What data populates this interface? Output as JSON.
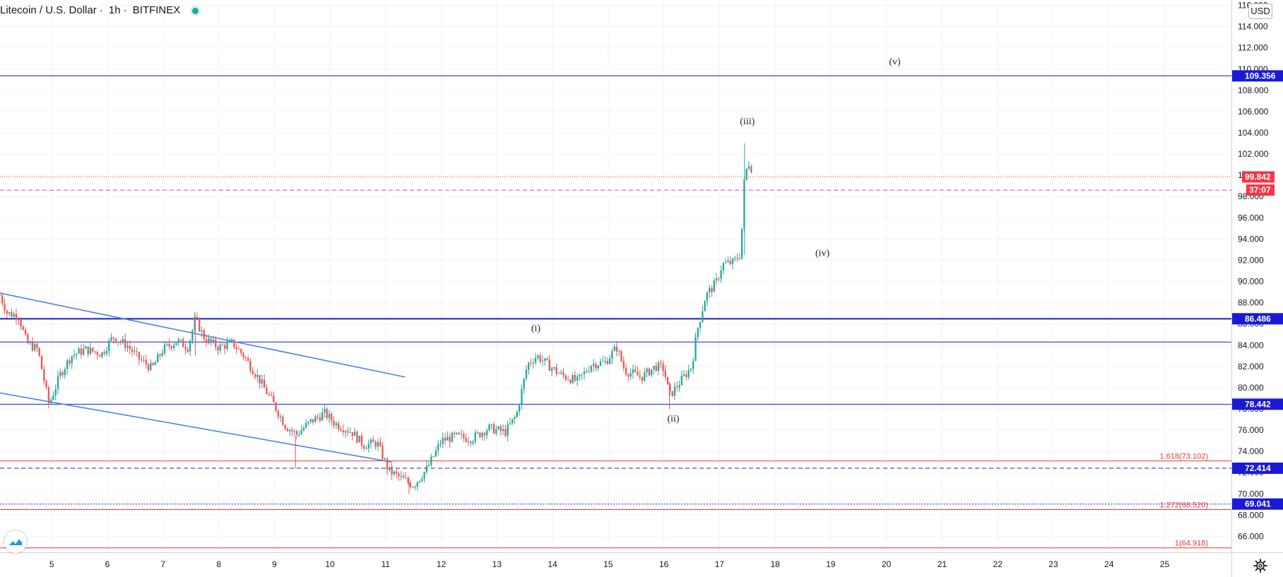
{
  "header": {
    "symbol": "Litecoin / U.S. Dollar",
    "interval": "1h",
    "exchange": "BITFINEX"
  },
  "currency_button": "USD",
  "colors": {
    "up": "#26a69a",
    "down": "#ef5350",
    "level_blue": "#1a1ad6",
    "trend_blue": "#4a86e8",
    "fib_red": "#e53935",
    "price_red": "#f23645",
    "magenta": "#cc44dd"
  },
  "chart_data": {
    "type": "candlestick",
    "y_range": [
      64.5,
      116.5
    ],
    "x_range": [
      4.07,
      26.2
    ],
    "y_ticks": [
      66,
      68,
      70,
      72,
      74,
      76,
      78,
      80,
      82,
      84,
      86,
      88,
      90,
      92,
      94,
      96,
      98,
      100,
      102,
      104,
      106,
      108,
      110,
      112,
      114,
      116
    ],
    "y_tick_labels": [
      "66.000",
      "68.000",
      "70.000",
      "72.000",
      "74.000",
      "76.000",
      "78.000",
      "80.000",
      "82.000",
      "84.000",
      "86.000",
      "88.000",
      "90.000",
      "92.000",
      "94.000",
      "96.000",
      "98.000",
      "100.000",
      "102.000",
      "104.000",
      "106.000",
      "108.000",
      "110.000",
      "112.000",
      "114.000",
      "116.000"
    ],
    "x_ticks": [
      5,
      6,
      7,
      8,
      9,
      10,
      11,
      12,
      13,
      14,
      15,
      16,
      17,
      18,
      19,
      20,
      21,
      22,
      23,
      24,
      25
    ],
    "x_tick_labels": [
      "5",
      "6",
      "7",
      "8",
      "9",
      "10",
      "11",
      "12",
      "13",
      "14",
      "15",
      "16",
      "17",
      "18",
      "19",
      "20",
      "21",
      "22",
      "23",
      "24",
      "25"
    ],
    "price_path": [
      [
        4.07,
        88.7
      ],
      [
        4.2,
        87.0
      ],
      [
        4.4,
        86.8
      ],
      [
        4.55,
        84.2
      ],
      [
        4.75,
        83.6
      ],
      [
        4.95,
        78.4
      ],
      [
        5.15,
        81.2
      ],
      [
        5.35,
        83.0
      ],
      [
        5.6,
        83.6
      ],
      [
        5.9,
        83.2
      ],
      [
        6.1,
        84.8
      ],
      [
        6.35,
        84.0
      ],
      [
        6.55,
        82.8
      ],
      [
        6.8,
        81.8
      ],
      [
        7.0,
        83.6
      ],
      [
        7.25,
        84.4
      ],
      [
        7.45,
        83.8
      ],
      [
        7.58,
        86.5
      ],
      [
        7.75,
        84.6
      ],
      [
        8.0,
        83.8
      ],
      [
        8.25,
        84.2
      ],
      [
        8.45,
        83.0
      ],
      [
        8.7,
        81.0
      ],
      [
        8.95,
        78.8
      ],
      [
        9.2,
        76.4
      ],
      [
        9.4,
        75.6
      ],
      [
        9.65,
        76.8
      ],
      [
        9.9,
        77.6
      ],
      [
        10.1,
        76.6
      ],
      [
        10.4,
        75.8
      ],
      [
        10.6,
        74.6
      ],
      [
        10.85,
        74.8
      ],
      [
        11.05,
        72.2
      ],
      [
        11.3,
        71.4
      ],
      [
        11.5,
        70.8
      ],
      [
        11.75,
        72.4
      ],
      [
        12.0,
        75.0
      ],
      [
        12.25,
        75.4
      ],
      [
        12.55,
        75.2
      ],
      [
        12.85,
        76.2
      ],
      [
        13.15,
        75.8
      ],
      [
        13.35,
        77.4
      ],
      [
        13.55,
        82.2
      ],
      [
        13.72,
        83.0
      ],
      [
        13.9,
        82.2
      ],
      [
        14.15,
        81.2
      ],
      [
        14.45,
        80.6
      ],
      [
        14.7,
        82.2
      ],
      [
        14.95,
        82.4
      ],
      [
        15.15,
        83.8
      ],
      [
        15.3,
        81.6
      ],
      [
        15.6,
        81.0
      ],
      [
        15.85,
        82.0
      ],
      [
        16.0,
        81.8
      ],
      [
        16.1,
        79.2
      ],
      [
        16.3,
        80.6
      ],
      [
        16.5,
        82.0
      ],
      [
        16.6,
        85.4
      ],
      [
        16.75,
        88.6
      ],
      [
        16.95,
        90.0
      ],
      [
        17.05,
        91.6
      ],
      [
        17.25,
        91.8
      ],
      [
        17.38,
        92.6
      ],
      [
        17.45,
        99.8
      ],
      [
        17.52,
        101.2
      ],
      [
        17.6,
        100.4
      ]
    ],
    "h_levels": [
      {
        "price": 109.356,
        "label": "109.356",
        "style": "solid-blue"
      },
      {
        "price": 86.486,
        "label": "86.486",
        "style": "solid-blue-thick"
      },
      {
        "price": 84.3,
        "label": "",
        "style": "solid-blue"
      },
      {
        "price": 78.442,
        "label": "78.442",
        "style": "solid-blue"
      },
      {
        "price": 72.414,
        "label": "72.414",
        "style": "dashed-blue"
      },
      {
        "price": 69.041,
        "label": "69.041",
        "style": "dotted-blue"
      }
    ],
    "fib_levels": [
      {
        "price": 73.102,
        "label": "1.618(73.102)"
      },
      {
        "price": 68.52,
        "label": "1.272(68.520)"
      },
      {
        "price": 64.918,
        "label": "1(64.918)"
      }
    ],
    "current_price": {
      "price": 99.842,
      "label": "99.842"
    },
    "countdown": {
      "price": 98.6,
      "label": "37:07"
    },
    "trend_lines": [
      {
        "x1": 4.07,
        "y1": 88.9,
        "x2": 11.35,
        "y2": 81.0
      },
      {
        "x1": 4.07,
        "y1": 79.5,
        "x2": 11.1,
        "y2": 73.0
      }
    ],
    "wave_labels": [
      {
        "text": "(i)",
        "x": 13.7,
        "y": 85.3
      },
      {
        "text": "(ii)",
        "x": 16.17,
        "y": 76.8
      },
      {
        "text": "(iii)",
        "x": 17.5,
        "y": 104.8
      },
      {
        "text": "(iv)",
        "x": 18.85,
        "y": 92.4
      },
      {
        "text": "(v)",
        "x": 20.15,
        "y": 110.4
      }
    ]
  }
}
